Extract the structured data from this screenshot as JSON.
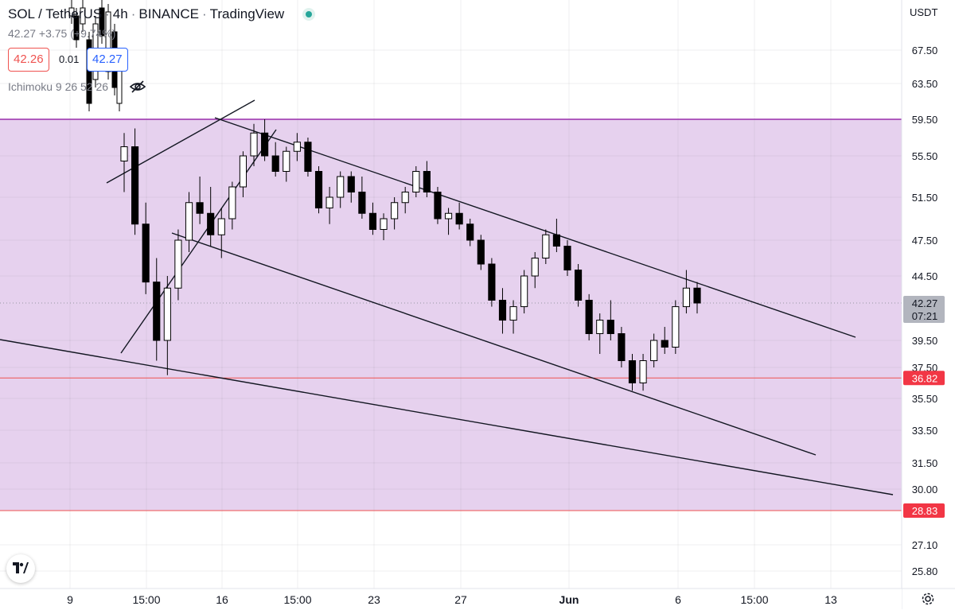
{
  "header": {
    "symbol": "SOL / TetherUS",
    "interval": "4h",
    "exchange": "BINANCE",
    "source": "TradingView",
    "price_change": "42.27 +3.75 (+9.74%)",
    "bid": "42.26",
    "spread": "0.01",
    "ask": "42.27",
    "indicator": "Ichimoku 9 26 52 26"
  },
  "axis": {
    "currency": "USDT",
    "price_tag": "42.27",
    "countdown": "07:21",
    "level_tags": [
      "36.82",
      "28.83"
    ]
  },
  "colors": {
    "up": "#ffffff",
    "down": "#000000",
    "zone_fill": "#e6d1ee",
    "zone_border": "#9c27b0",
    "level_line": "#ef5350",
    "tag_bg": "#f23645",
    "price_tag_bg": "#b2b5be"
  },
  "icons": [
    "eye-off-icon",
    "tradingview-logo-icon",
    "gear-icon"
  ],
  "chart_data": {
    "type": "candlestick",
    "y_ticks": [
      "67.50",
      "63.50",
      "59.50",
      "55.50",
      "51.50",
      "47.50",
      "44.50",
      "39.50",
      "37.50",
      "35.50",
      "33.50",
      "31.50",
      "30.00",
      "28.83",
      "27.10",
      "25.80"
    ],
    "x_ticks": [
      "9",
      "15:00",
      "16",
      "15:00",
      "23",
      "27",
      "Jun",
      "6",
      "15:00",
      "13"
    ],
    "zone": {
      "from": 28.83,
      "to": 59.5
    },
    "levels": [
      36.82,
      28.83
    ],
    "last_price": 42.27,
    "candles_approx": [
      [
        55.0,
        58.0,
        52.0,
        56.5
      ],
      [
        56.5,
        58.5,
        48.0,
        49.0
      ],
      [
        49.0,
        51.0,
        43.0,
        44.0
      ],
      [
        44.0,
        46.0,
        38.0,
        39.5
      ],
      [
        39.5,
        44.5,
        37.0,
        43.5
      ],
      [
        43.5,
        48.5,
        42.5,
        47.5
      ],
      [
        47.5,
        52.0,
        46.5,
        51.0
      ],
      [
        51.0,
        53.5,
        49.0,
        50.0
      ],
      [
        50.0,
        52.5,
        47.0,
        48.0
      ],
      [
        48.0,
        50.5,
        46.0,
        49.5
      ],
      [
        49.5,
        53.0,
        48.5,
        52.5
      ],
      [
        52.5,
        56.0,
        51.5,
        55.5
      ],
      [
        55.5,
        59.0,
        54.5,
        58.0
      ],
      [
        58.0,
        59.5,
        55.0,
        55.5
      ],
      [
        55.5,
        57.0,
        53.5,
        54.0
      ],
      [
        54.0,
        56.5,
        53.0,
        56.0
      ],
      [
        56.0,
        58.0,
        55.0,
        57.0
      ],
      [
        57.0,
        57.5,
        53.5,
        54.0
      ],
      [
        54.0,
        54.5,
        50.0,
        50.5
      ],
      [
        50.5,
        52.5,
        49.0,
        51.5
      ],
      [
        51.5,
        54.0,
        50.5,
        53.5
      ],
      [
        53.5,
        54.0,
        51.0,
        52.0
      ],
      [
        52.0,
        53.5,
        49.5,
        50.0
      ],
      [
        50.0,
        51.0,
        48.0,
        48.5
      ],
      [
        48.5,
        50.0,
        47.5,
        49.5
      ],
      [
        49.5,
        51.5,
        48.5,
        51.0
      ],
      [
        51.0,
        52.5,
        50.0,
        52.0
      ],
      [
        52.0,
        54.5,
        51.5,
        54.0
      ],
      [
        54.0,
        55.0,
        51.5,
        52.0
      ],
      [
        52.0,
        52.5,
        49.0,
        49.5
      ],
      [
        49.5,
        50.5,
        48.0,
        50.0
      ],
      [
        50.0,
        51.0,
        48.5,
        49.0
      ],
      [
        49.0,
        49.5,
        47.0,
        47.5
      ],
      [
        47.5,
        48.0,
        45.0,
        45.5
      ],
      [
        45.5,
        46.0,
        42.0,
        42.5
      ],
      [
        42.5,
        43.5,
        40.0,
        41.0
      ],
      [
        41.0,
        42.5,
        40.0,
        42.0
      ],
      [
        42.0,
        45.0,
        41.5,
        44.5
      ],
      [
        44.5,
        46.5,
        43.5,
        46.0
      ],
      [
        46.0,
        48.5,
        45.5,
        48.0
      ],
      [
        48.0,
        49.5,
        46.5,
        47.0
      ],
      [
        47.0,
        47.5,
        44.5,
        45.0
      ],
      [
        45.0,
        45.5,
        42.0,
        42.5
      ],
      [
        42.5,
        43.0,
        39.5,
        40.0
      ],
      [
        40.0,
        41.5,
        38.5,
        41.0
      ],
      [
        41.0,
        42.5,
        39.5,
        40.0
      ],
      [
        40.0,
        40.5,
        37.5,
        38.0
      ],
      [
        38.0,
        38.5,
        36.0,
        36.5
      ],
      [
        36.5,
        38.5,
        36.0,
        38.0
      ],
      [
        38.0,
        40.0,
        37.5,
        39.5
      ],
      [
        39.5,
        40.5,
        38.5,
        39.0
      ],
      [
        39.0,
        42.5,
        38.5,
        42.0
      ],
      [
        42.0,
        45.0,
        41.5,
        43.5
      ],
      [
        43.5,
        44.0,
        41.5,
        42.27
      ]
    ]
  }
}
